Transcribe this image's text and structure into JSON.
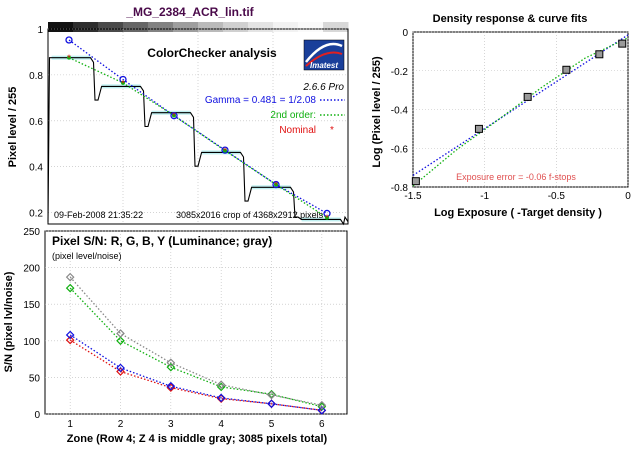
{
  "file_title": "_MG_2384_ACR_lin.tif",
  "step_strip_colors": [
    "#121212",
    "#2e2e2e",
    "#4a4a4a",
    "#666666",
    "#828282",
    "#9e9e9e",
    "#bababa",
    "#d0d0d0",
    "#e4e4e4",
    "#f2f2f2",
    "#fafafa",
    "#d8d8d8"
  ],
  "colors": {
    "frame": "#000000",
    "title": "#4a0a4a",
    "blue": "#1010e0",
    "green": "#10b010",
    "red": "#e01010",
    "gray": "#555555",
    "error": "#e05050",
    "diamond_gray": "#888888"
  },
  "chart_data": [
    {
      "id": "colorchecker",
      "type": "line",
      "title": "ColorChecker analysis",
      "ylabel": "Pixel level / 255",
      "xlabel": "",
      "ylim": [
        0.15,
        1.0
      ],
      "yticks": [
        0.2,
        0.4,
        0.6,
        0.8,
        1
      ],
      "ytick_labels": [
        "0.2",
        "0.4",
        "0.6",
        "0.8",
        "1"
      ],
      "grid": true,
      "version": "2.6.6  Pro",
      "logo_text": "Imatest",
      "gamma_text": "Gamma = 0.481 = 1/2.08",
      "second_order_text": "2nd order:",
      "nominal_text": "Nominal",
      "footer_date": "09-Feb-2008 21:35:22",
      "footer_crop": "3085x2016 crop of 4368x2912 pixels",
      "patch_x": [
        0.07,
        0.25,
        0.42,
        0.59,
        0.76,
        0.93
      ],
      "blue_points": [
        0.952,
        0.78,
        0.622,
        0.472,
        0.322,
        0.196
      ],
      "green_points": [
        0.875,
        0.765,
        0.623,
        0.47,
        0.322,
        0.178
      ],
      "red_points": [
        0.875,
        0.765,
        0.623,
        0.47,
        0.322,
        0.178
      ],
      "step_levels": [
        0.875,
        0.75,
        0.635,
        0.462,
        0.31,
        0.17
      ]
    },
    {
      "id": "density",
      "type": "line",
      "title": "Density response & curve fits",
      "xlabel": "Log Exposure ( -Target density )",
      "ylabel": "Log (Pixel level / 255)",
      "xlim": [
        -1.5,
        0
      ],
      "ylim": [
        -0.8,
        0
      ],
      "xticks": [
        -1.5,
        -1,
        -0.5,
        0
      ],
      "xtick_labels": [
        "-1.5",
        "-1",
        "-0.5",
        "0"
      ],
      "yticks": [
        -0.8,
        -0.6,
        -0.4,
        -0.2,
        0
      ],
      "ytick_labels": [
        "-0.8",
        "-0.6",
        "-0.4",
        "-0.2",
        "0"
      ],
      "grid": true,
      "annotation": "Exposure error = -0.06 f-stops",
      "points": [
        {
          "x": -1.48,
          "y": -0.77
        },
        {
          "x": -1.04,
          "y": -0.5
        },
        {
          "x": -0.7,
          "y": -0.335
        },
        {
          "x": -0.43,
          "y": -0.195
        },
        {
          "x": -0.2,
          "y": -0.115
        },
        {
          "x": -0.04,
          "y": -0.06
        }
      ],
      "series": [
        {
          "name": "blue fit",
          "color": "#1010e0",
          "x": [
            -1.5,
            0
          ],
          "y": [
            -0.74,
            -0.015
          ]
        },
        {
          "name": "green fit",
          "color": "#10b010",
          "x": [
            -1.5,
            -1.2,
            -0.9,
            -0.6,
            -0.3,
            0
          ],
          "y": [
            -0.795,
            -0.61,
            -0.45,
            -0.285,
            -0.135,
            -0.03
          ]
        }
      ]
    },
    {
      "id": "sn",
      "type": "line",
      "title": "Pixel S/N: R, G, B, Y (Luminance; gray)",
      "subtitle": "(pixel level/noise)",
      "ylabel": "S/N (pixel lvl/noise)",
      "xlabel": "Zone  (Row 4;  Z 4 is middle gray;  3085 pixels total)",
      "xlim": [
        0.5,
        6.5
      ],
      "ylim": [
        0,
        250
      ],
      "xticks": [
        1,
        2,
        3,
        4,
        5,
        6
      ],
      "xtick_labels": [
        "1",
        "2",
        "3",
        "4",
        "5",
        "6"
      ],
      "yticks": [
        0,
        50,
        100,
        150,
        200,
        250
      ],
      "ytick_labels": [
        "0",
        "50",
        "100",
        "150",
        "200",
        "250"
      ],
      "grid": true,
      "x": [
        1,
        2,
        3,
        4,
        5,
        6
      ],
      "series": [
        {
          "name": "R",
          "color": "#e01010",
          "values": [
            101,
            58,
            36,
            21,
            14,
            5
          ]
        },
        {
          "name": "G",
          "color": "#10b010",
          "values": [
            172,
            100,
            64,
            37,
            27,
            10
          ]
        },
        {
          "name": "B",
          "color": "#1010e0",
          "values": [
            108,
            63,
            38,
            22,
            14,
            5
          ]
        },
        {
          "name": "Y",
          "color": "#888888",
          "values": [
            187,
            110,
            70,
            40,
            26,
            12
          ]
        }
      ]
    }
  ]
}
